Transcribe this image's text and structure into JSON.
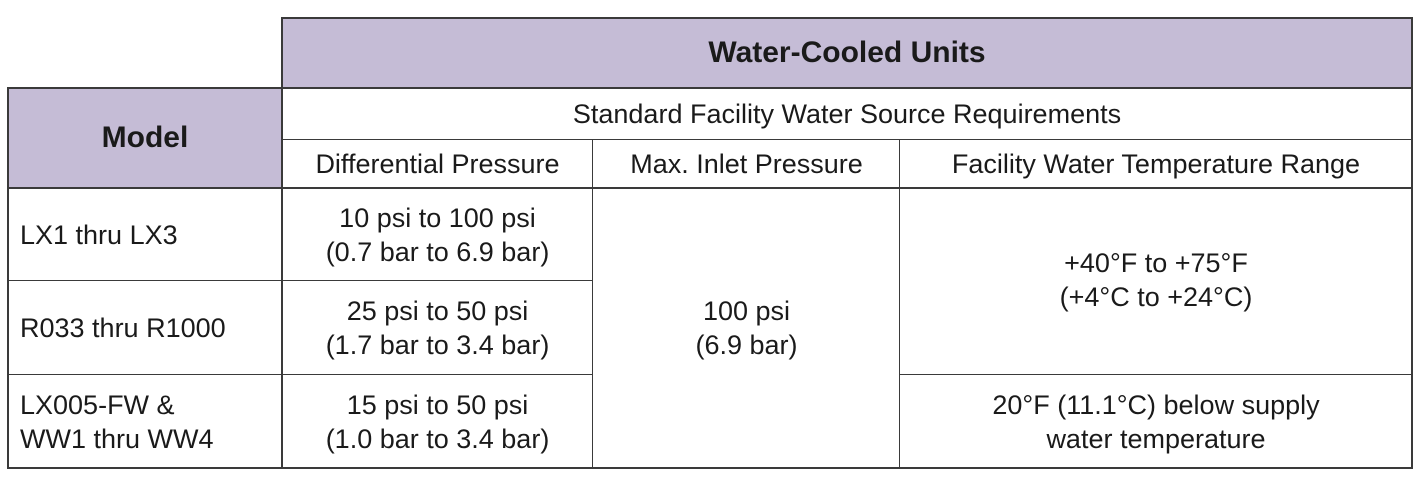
{
  "colors": {
    "header_bg": "#c5bcd6",
    "border": "#3a3a3a"
  },
  "table": {
    "title": "Water-Cooled Units",
    "model_header": "Model",
    "subheader": "Standard Facility Water Source Requirements",
    "columns": [
      "Differential Pressure",
      "Max. Inlet Pressure",
      "Facility Water Temperature Range"
    ],
    "rows": [
      {
        "model": [
          "LX1 thru LX3"
        ],
        "diff": [
          "10 psi to 100 psi",
          "(0.7 bar to 6.9 bar)"
        ]
      },
      {
        "model": [
          "R033 thru R1000"
        ],
        "diff": [
          "25 psi to 50 psi",
          "(1.7 bar to 3.4 bar)"
        ]
      },
      {
        "model": [
          "LX005-FW &",
          "WW1 thru WW4"
        ],
        "diff": [
          "15 psi to 50 psi",
          "(1.0 bar to 3.4 bar)"
        ]
      }
    ],
    "max_inlet": [
      "100 psi",
      "(6.9 bar)"
    ],
    "temp_range_1": [
      "+40°F to +75°F",
      "(+4°C to +24°C)"
    ],
    "temp_range_2": [
      "20°F (11.1°C) below supply",
      "water temperature"
    ]
  }
}
